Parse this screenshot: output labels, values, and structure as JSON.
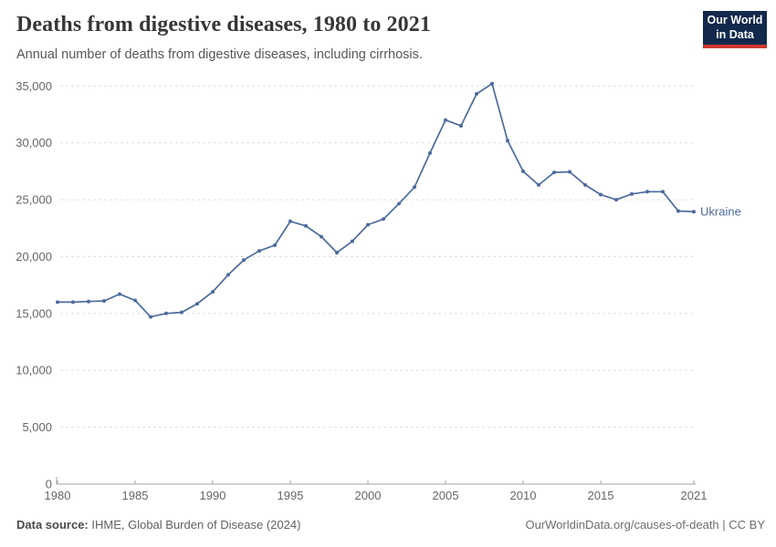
{
  "header": {
    "title": "Deaths from digestive diseases, 1980 to 2021",
    "subtitle": "Annual number of deaths from digestive diseases, including cirrhosis.",
    "logo_line1": "Our World",
    "logo_line2": "in Data"
  },
  "chart_data": {
    "type": "line",
    "title": "Deaths from digestive diseases, 1980 to 2021",
    "xlabel": "",
    "ylabel": "",
    "xlim": [
      1980,
      2021
    ],
    "ylim": [
      0,
      35000
    ],
    "grid": "horizontal-dashed",
    "legend_position": "end-of-line",
    "x_ticks": [
      1980,
      1985,
      1990,
      1995,
      2000,
      2005,
      2010,
      2015,
      2021
    ],
    "y_ticks": [
      0,
      5000,
      10000,
      15000,
      20000,
      25000,
      30000,
      35000
    ],
    "series": [
      {
        "name": "Ukraine",
        "color": "#4C6A9C",
        "x": [
          1980,
          1981,
          1982,
          1983,
          1984,
          1985,
          1986,
          1987,
          1988,
          1989,
          1990,
          1991,
          1992,
          1993,
          1994,
          1995,
          1996,
          1997,
          1998,
          1999,
          2000,
          2001,
          2002,
          2003,
          2004,
          2005,
          2006,
          2007,
          2008,
          2009,
          2010,
          2011,
          2012,
          2013,
          2014,
          2015,
          2016,
          2017,
          2018,
          2019,
          2020,
          2021
        ],
        "values": [
          16000,
          16000,
          16050,
          16100,
          16700,
          16150,
          14700,
          15000,
          15100,
          15850,
          16900,
          18400,
          19700,
          20500,
          21000,
          23100,
          22700,
          21750,
          20350,
          21350,
          22800,
          23300,
          24650,
          26100,
          29100,
          32000,
          31500,
          34300,
          35200,
          30200,
          27500,
          26300,
          27400,
          27450,
          26300,
          25450,
          25000,
          25500,
          25700,
          25700,
          24000,
          23950
        ]
      }
    ]
  },
  "footer": {
    "source_label": "Data source:",
    "source_text": " IHME, Global Burden of Disease (2024)",
    "credit": "OurWorldinData.org/causes-of-death | CC BY"
  },
  "colors": {
    "line": "#4C6A9C",
    "grid": "#e0e0e0",
    "axis": "#a3a3a3",
    "tick_text": "#666666",
    "logo_navy": "#12294d",
    "logo_red": "#ce392e"
  }
}
